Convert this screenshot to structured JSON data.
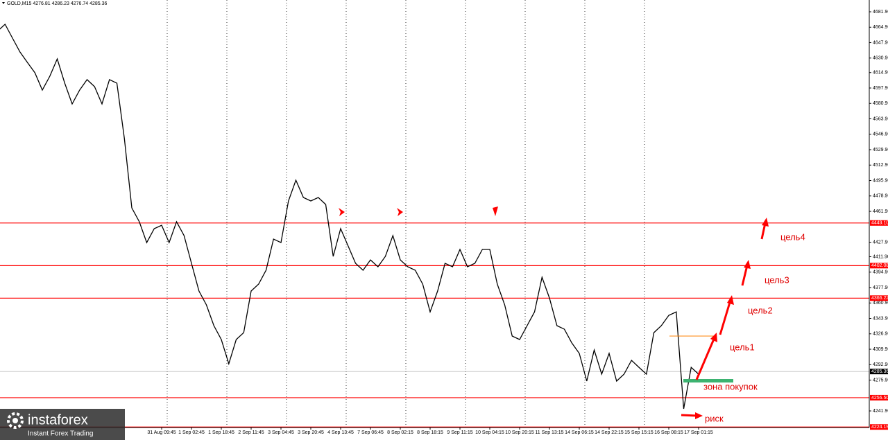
{
  "chart_data": {
    "type": "line",
    "title": "GOLD,M15  4276.81 4286.23 4276.74 4285.36",
    "categories": [
      null,
      null,
      null,
      null,
      null,
      null,
      null,
      null,
      null,
      null,
      null,
      null,
      null,
      null,
      null,
      null,
      null,
      null,
      null,
      null,
      null,
      null,
      "31 Aug 09:45",
      null,
      null,
      null,
      "1 Sep 02:45",
      null,
      null,
      null,
      "1 Sep 18:45",
      null,
      null,
      null,
      "2 Sep 11:45",
      null,
      null,
      null,
      "3 Sep 04:45",
      null,
      null,
      null,
      "3 Sep 20:45",
      null,
      null,
      null,
      "4 Sep 13:45",
      null,
      null,
      null,
      "7 Sep 06:45",
      null,
      null,
      null,
      "8 Sep 02:15",
      null,
      null,
      null,
      "8 Sep 18:15",
      null,
      null,
      null,
      "9 Sep 11:15",
      null,
      null,
      null,
      "10 Sep 04:15",
      null,
      null,
      null,
      "10 Sep 20:15",
      null,
      null,
      null,
      "11 Sep 13:15",
      null,
      null,
      null,
      "14 Sep 06:15",
      null,
      null,
      null,
      "14 Sep 22:15",
      null,
      null,
      null,
      "15 Sep 15:15",
      null,
      null,
      null,
      "16 Sep 08:15",
      null,
      null,
      null,
      "17 Sep 01:15"
    ],
    "series": [
      {
        "name": "GOLD,M15",
        "color": "#000000",
        "values": [
          4660.5,
          4668.2,
          4652.9,
          4637.6,
          4626.1,
          4614.7,
          4595.6,
          4610.9,
          4630.0,
          4603.2,
          4580.3,
          4595.6,
          4607.1,
          4599.4,
          4580.3,
          4607.1,
          4603.2,
          4542.1,
          4465.7,
          4450.5,
          4427.5,
          4442.8,
          4446.6,
          4427.5,
          4450.5,
          4435.2,
          4404.6,
          4374.1,
          4358.8,
          4335.9,
          4320.6,
          4293.9,
          4320.6,
          4328.2,
          4374.1,
          4381.7,
          4397.0,
          4431.4,
          4427.5,
          4473.4,
          4496.3,
          4477.2,
          4473.4,
          4477.2,
          4469.5,
          4412.3,
          4442.8,
          4423.7,
          4404.6,
          4397.0,
          4408.4,
          4400.8,
          4412.3,
          4435.2,
          4408.4,
          4400.8,
          4397.0,
          4381.7,
          4351.1,
          4374.1,
          4404.6,
          4400.8,
          4419.9,
          4400.8,
          4404.6,
          4419.9,
          4419.9,
          4381.7,
          4358.8,
          4324.4,
          4320.6,
          4335.9,
          4351.1,
          4389.3,
          4366.4,
          4335.9,
          4332.0,
          4316.8,
          4305.3,
          4274.8,
          4309.1,
          4282.4,
          4305.3,
          4274.8,
          4282.4,
          4297.7,
          4290.0,
          4282.4,
          4328.2,
          4335.9,
          4347.3,
          4351.1,
          4244.2,
          4290.0,
          4282.4
        ]
      }
    ],
    "ylim": [
      4223.6,
      4694.9
    ],
    "yticks": [
      {
        "value": 4681.9,
        "label": "4681.90"
      },
      {
        "value": 4664.9,
        "label": "4664.90"
      },
      {
        "value": 4647.9,
        "label": "4647.90"
      },
      {
        "value": 4630.9,
        "label": "4630.90"
      },
      {
        "value": 4614.9,
        "label": "4614.90"
      },
      {
        "value": 4597.9,
        "label": "4597.90"
      },
      {
        "value": 4580.9,
        "label": "4580.90"
      },
      {
        "value": 4563.9,
        "label": "4563.90"
      },
      {
        "value": 4546.9,
        "label": "4546.90"
      },
      {
        "value": 4529.9,
        "label": "4529.90"
      },
      {
        "value": 4512.9,
        "label": "4512.90"
      },
      {
        "value": 4495.9,
        "label": "4495.90"
      },
      {
        "value": 4478.9,
        "label": "4478.90"
      },
      {
        "value": 4461.9,
        "label": "4461.90"
      },
      {
        "value": 4427.9,
        "label": "4427.90"
      },
      {
        "value": 4411.9,
        "label": "4411.90"
      },
      {
        "value": 4394.9,
        "label": "4394.90"
      },
      {
        "value": 4377.9,
        "label": "4377.90"
      },
      {
        "value": 4360.9,
        "label": "4360.90"
      },
      {
        "value": 4343.9,
        "label": "4343.90"
      },
      {
        "value": 4326.9,
        "label": "4326.90"
      },
      {
        "value": 4309.9,
        "label": "4309.90"
      },
      {
        "value": 4292.9,
        "label": "4292.90"
      },
      {
        "value": 4275.9,
        "label": "4275.90"
      },
      {
        "value": 4241.9,
        "label": "4241.90"
      }
    ],
    "levels": [
      {
        "value": 4449.1,
        "label": "4449.10"
      },
      {
        "value": 4402.08,
        "label": "4402.08"
      },
      {
        "value": 4366.22,
        "label": "4366.22"
      },
      {
        "value": 4256.5,
        "label": "4256.50"
      },
      {
        "value": 4224.19,
        "label": "4224.19"
      }
    ],
    "level_color": "#ff0000",
    "last_price": {
      "value": 4285.36,
      "label": "4285.36"
    },
    "annotations": [
      "цель4",
      "цель3",
      "цель2",
      "цель1",
      "зона покупок",
      "риск"
    ],
    "watermark": {
      "brand": "instaforex",
      "slogan": "Instant Forex Trading"
    }
  }
}
